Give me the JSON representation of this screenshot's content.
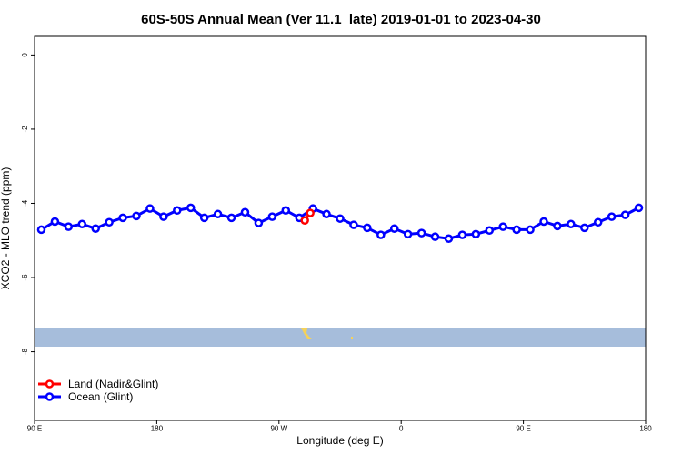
{
  "chart_data": {
    "type": "line",
    "title": "60S-50S Annual Mean (Ver 11.1_late)   2019-01-01 to 2023-04-30",
    "xlabel": "Longitude (deg E)",
    "ylabel": "XCO2 - MLO trend (ppm)",
    "xlim": [
      90,
      540
    ],
    "ylim": [
      -9.85,
      0.5
    ],
    "xticks": [
      {
        "value": 90,
        "label": "90 E"
      },
      180,
      {
        "value": 270,
        "label": "90 W"
      },
      {
        "value": 360,
        "label": "0"
      },
      {
        "value": 450,
        "label": "90 E"
      },
      {
        "value": 540,
        "label": "180"
      }
    ],
    "yticks": [
      0,
      -2,
      -4,
      -6,
      -8
    ],
    "legend": "bottom-left",
    "series": [
      {
        "name": "Land (Nadir&Glint)",
        "color": "#ff0000",
        "x": [
          289,
          293
        ],
        "values": [
          -4.46,
          -4.26
        ]
      },
      {
        "name": "Ocean (Glint)",
        "color": "#0000ff",
        "x": [
          95,
          105,
          115,
          125,
          135,
          145,
          155,
          165,
          175,
          185,
          195,
          205,
          215,
          225,
          235,
          245,
          255,
          265,
          275,
          285,
          295,
          305,
          315,
          325,
          335,
          345,
          355,
          365,
          375,
          385,
          395,
          405,
          415,
          425,
          435,
          445,
          455,
          465,
          475,
          485,
          495,
          505,
          515,
          525,
          535
        ],
        "values": [
          -4.71,
          -4.49,
          -4.63,
          -4.56,
          -4.68,
          -4.51,
          -4.39,
          -4.34,
          -4.14,
          -4.36,
          -4.19,
          -4.12,
          -4.39,
          -4.29,
          -4.39,
          -4.24,
          -4.53,
          -4.36,
          -4.19,
          -4.39,
          -4.14,
          -4.29,
          -4.41,
          -4.58,
          -4.66,
          -4.85,
          -4.68,
          -4.83,
          -4.8,
          -4.9,
          -4.95,
          -4.85,
          -4.83,
          -4.73,
          -4.63,
          -4.71,
          -4.71,
          -4.49,
          -4.61,
          -4.56,
          -4.66,
          -4.51,
          -4.36,
          -4.31,
          -4.12
        ]
      }
    ]
  }
}
